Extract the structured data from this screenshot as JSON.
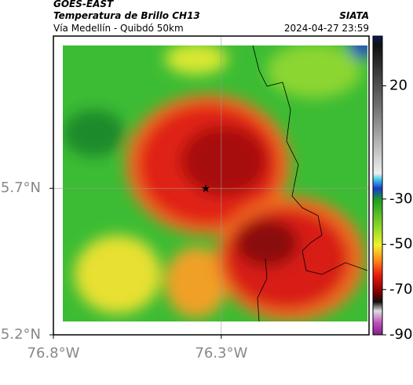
{
  "header": {
    "source": "GOES-EAST",
    "title": "Temperatura de Brillo CH13",
    "org": "SIATA",
    "route": "Vía Medellín - Quibdó 50km",
    "timestamp": "2024-04-27 23:59"
  },
  "map": {
    "xlim": [
      -76.8,
      -75.86
    ],
    "ylim": [
      5.2,
      6.22
    ],
    "xticks": [
      {
        "value": -76.8,
        "label": "76.8°W"
      },
      {
        "value": -76.3,
        "label": "76.3°W"
      }
    ],
    "yticks": [
      {
        "value": 5.2,
        "label": "5.2°N"
      },
      {
        "value": 5.7,
        "label": "5.7°N"
      }
    ],
    "colorbar": {
      "clim": [
        -90,
        42
      ],
      "ticks": [
        20,
        -30,
        -50,
        -70,
        -90
      ]
    }
  }
}
